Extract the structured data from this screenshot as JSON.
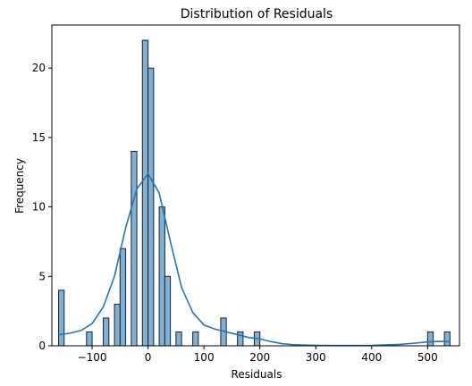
{
  "chart_data": {
    "type": "bar",
    "title": "Distribution of Residuals",
    "xlabel": "Residuals",
    "ylabel": "Frequency",
    "xlim": [
      -172,
      557
    ],
    "ylim": [
      0,
      23.1
    ],
    "bin_width": 10,
    "bins": [
      {
        "x0": -160,
        "x1": -150,
        "count": 4
      },
      {
        "x0": -110,
        "x1": -100,
        "count": 1
      },
      {
        "x0": -80,
        "x1": -70,
        "count": 2
      },
      {
        "x0": -60,
        "x1": -50,
        "count": 3
      },
      {
        "x0": -50,
        "x1": -40,
        "count": 7
      },
      {
        "x0": -40,
        "x1": -30,
        "count": 0
      },
      {
        "x0": -30,
        "x1": -20,
        "count": 14
      },
      {
        "x0": -20,
        "x1": -10,
        "count": 0
      },
      {
        "x0": -10,
        "x1": 0,
        "count": 22
      },
      {
        "x0": 0,
        "x1": 10,
        "count": 20
      },
      {
        "x0": 10,
        "x1": 20,
        "count": 0
      },
      {
        "x0": 20,
        "x1": 30,
        "count": 10
      },
      {
        "x0": 30,
        "x1": 40,
        "count": 5
      },
      {
        "x0": 50,
        "x1": 60,
        "count": 1
      },
      {
        "x0": 80,
        "x1": 90,
        "count": 1
      },
      {
        "x0": 130,
        "x1": 140,
        "count": 2
      },
      {
        "x0": 160,
        "x1": 170,
        "count": 1
      },
      {
        "x0": 190,
        "x1": 200,
        "count": 1
      },
      {
        "x0": 500,
        "x1": 510,
        "count": 1
      },
      {
        "x0": 530,
        "x1": 540,
        "count": 1
      }
    ],
    "x_ticks": [
      {
        "value": -100,
        "label": "−100"
      },
      {
        "value": 0,
        "label": "0"
      },
      {
        "value": 100,
        "label": "100"
      },
      {
        "value": 200,
        "label": "200"
      },
      {
        "value": 300,
        "label": "300"
      },
      {
        "value": 400,
        "label": "400"
      },
      {
        "value": 500,
        "label": "500"
      }
    ],
    "y_ticks": [
      {
        "value": 0,
        "label": "0"
      },
      {
        "value": 5,
        "label": "5"
      },
      {
        "value": 10,
        "label": "10"
      },
      {
        "value": 15,
        "label": "15"
      },
      {
        "value": 20,
        "label": "20"
      }
    ],
    "kde": {
      "x": [
        -160,
        -140,
        -120,
        -100,
        -80,
        -60,
        -40,
        -20,
        0,
        20,
        40,
        60,
        80,
        100,
        120,
        140,
        160,
        180,
        200,
        220,
        240,
        260,
        280,
        300,
        350,
        400,
        450,
        480,
        500,
        520,
        540
      ],
      "y": [
        0.8,
        0.9,
        1.1,
        1.6,
        2.8,
        5.0,
        8.5,
        11.3,
        12.4,
        11.0,
        7.5,
        4.2,
        2.4,
        1.5,
        1.2,
        1.0,
        0.8,
        0.6,
        0.5,
        0.3,
        0.15,
        0.08,
        0.05,
        0.03,
        0.02,
        0.03,
        0.1,
        0.2,
        0.28,
        0.32,
        0.3
      ]
    },
    "bar_color": "#7fb0d6",
    "kde_color": "#1f77b4",
    "grid": false,
    "legend": "none"
  }
}
